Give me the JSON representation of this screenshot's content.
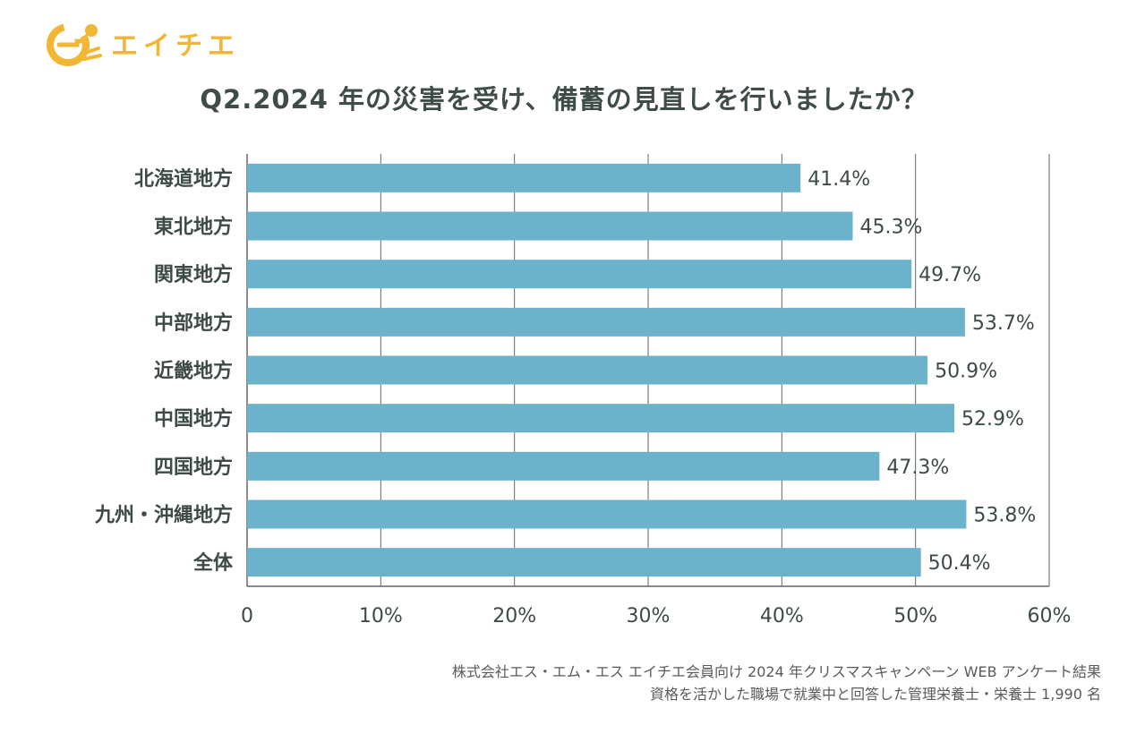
{
  "brand": {
    "name": "エイチエ",
    "color": "#f2b635"
  },
  "title": "Q2.2024 年の災害を受け、備蓄の見直しを行いましたか？",
  "footnote": {
    "line1": "株式会社エス・エム・エス エイチエ会員向け 2024 年クリスマスキャンペーン WEB アンケート結果",
    "line2": "資格を活かした職場で就業中と回答した管理栄養士・栄養士 1,990 名"
  },
  "colors": {
    "bar": "#6bb2ca",
    "grid": "#666666",
    "text": "#3d4a45"
  },
  "chart_data": {
    "type": "bar",
    "orientation": "horizontal",
    "categories": [
      "北海道地方",
      "東北地方",
      "関東地方",
      "中部地方",
      "近畿地方",
      "中国地方",
      "四国地方",
      "九州・沖縄地方",
      "全体"
    ],
    "values": [
      41.4,
      45.3,
      49.7,
      53.7,
      50.9,
      52.9,
      47.3,
      53.8,
      50.4
    ],
    "value_labels": [
      "41.4%",
      "45.3%",
      "49.7%",
      "53.7%",
      "50.9%",
      "52.9%",
      "47.3%",
      "53.8%",
      "50.4%"
    ],
    "xlim": [
      0,
      60
    ],
    "xticks": [
      0,
      10,
      20,
      30,
      40,
      50,
      60
    ],
    "xtick_labels": [
      "0",
      "10%",
      "20%",
      "30%",
      "40%",
      "50%",
      "60%"
    ],
    "grid": true,
    "legend": "none"
  }
}
